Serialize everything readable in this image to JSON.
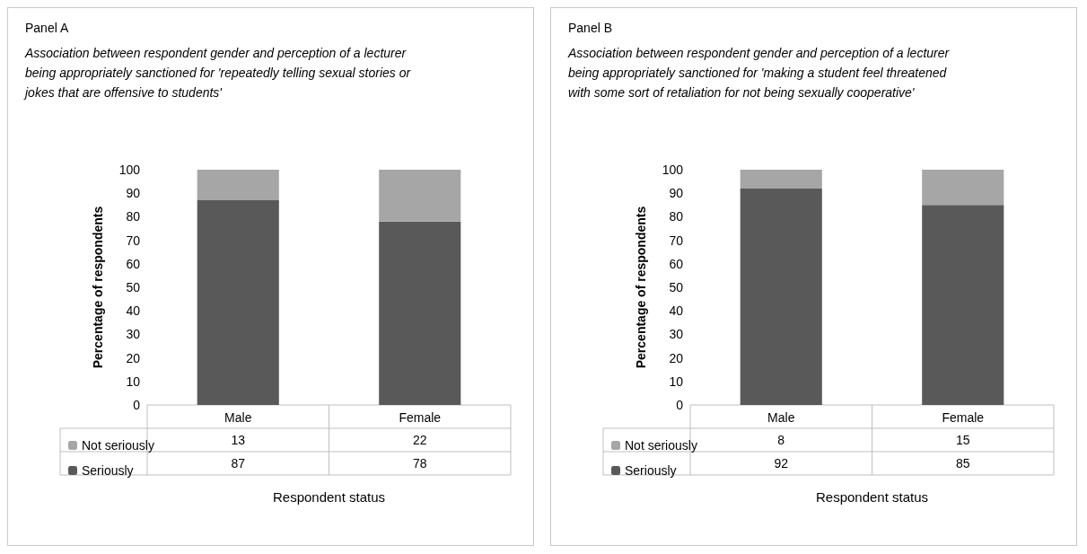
{
  "chart_data": [
    {
      "type": "bar",
      "title": "Panel A",
      "subtitle": "Association between respondent gender and perception of a lecturer being appropriately sanctioned for 'repeatedly telling sexual stories or jokes that are offensive to students'",
      "xlabel": "Respondent status",
      "ylabel": "Percentage of respondents",
      "categories": [
        "Male",
        "Female"
      ],
      "stacked": true,
      "series": [
        {
          "name": "Seriously",
          "color": "#595959",
          "values": [
            87,
            78
          ]
        },
        {
          "name": "Not seriously",
          "color": "#a6a6a6",
          "values": [
            13,
            22
          ]
        }
      ],
      "ylim": [
        0,
        100
      ],
      "yticks": [
        0,
        10,
        20,
        30,
        40,
        50,
        60,
        70,
        80,
        90,
        100
      ],
      "grid": false,
      "legend": "bottom left",
      "data_labels": true
    },
    {
      "type": "bar",
      "title": "Panel B",
      "subtitle": "Association between respondent gender and perception of a lecturer being appropriately sanctioned for 'making a student feel threatened with some sort of retaliation for not being sexually cooperative'",
      "xlabel": "Respondent status",
      "ylabel": "Percentage of respondents",
      "categories": [
        "Male",
        "Female"
      ],
      "stacked": true,
      "series": [
        {
          "name": "Seriously",
          "color": "#595959",
          "values": [
            92,
            85
          ]
        },
        {
          "name": "Not seriously",
          "color": "#a6a6a6",
          "values": [
            8,
            15
          ]
        }
      ],
      "ylim": [
        0,
        100
      ],
      "yticks": [
        0,
        10,
        20,
        30,
        40,
        50,
        60,
        70,
        80,
        90,
        100
      ],
      "grid": false,
      "legend": "bottom left",
      "data_labels": true
    }
  ]
}
